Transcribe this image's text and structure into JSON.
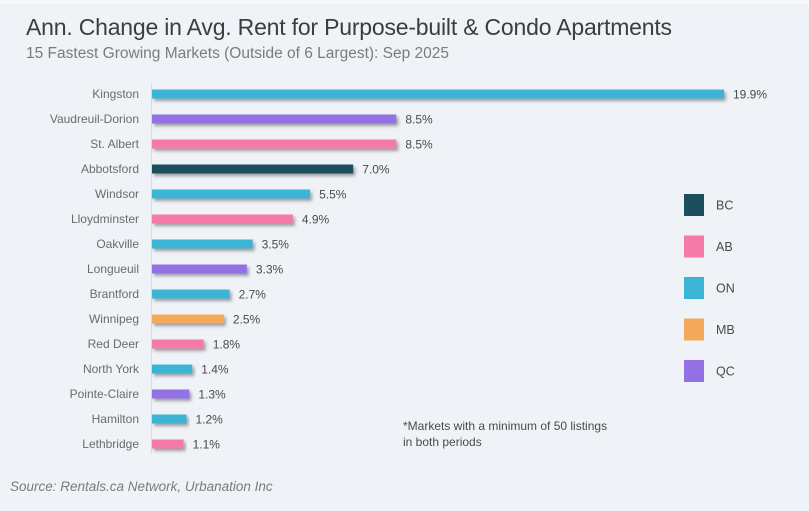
{
  "title": "Ann. Change in Avg. Rent for Purpose-built & Condo Apartments",
  "subtitle": "15 Fastest Growing Markets (Outside of 6 Largest): Sep 2025",
  "note": "*Markets with a minimum of 50 listings in both periods",
  "source": "Source: Rentals.ca Network, Urbanation Inc",
  "chart_data": {
    "type": "bar",
    "orientation": "horizontal",
    "title": "Ann. Change in Avg. Rent for Purpose-built & Condo Apartments",
    "subtitle": "15 Fastest Growing Markets (Outside of 6 Largest): Sep 2025",
    "xlabel": "",
    "ylabel": "",
    "xlim": [
      0,
      20
    ],
    "grid": false,
    "value_format": "percent_1dp",
    "legend_position": "right",
    "legend": [
      {
        "key": "BC",
        "label": "BC",
        "color": "#1b4f5c"
      },
      {
        "key": "AB",
        "label": "AB",
        "color": "#f57aa5"
      },
      {
        "key": "ON",
        "label": "ON",
        "color": "#3bb5d3"
      },
      {
        "key": "MB",
        "label": "MB",
        "color": "#f3a95a"
      },
      {
        "key": "QC",
        "label": "QC",
        "color": "#9370e3"
      }
    ],
    "categories": [
      "Kingston",
      "Vaudreuil-Dorion",
      "St. Albert",
      "Abbotsford",
      "Windsor",
      "Lloydminster",
      "Oakville",
      "Longueuil",
      "Brantford",
      "Winnipeg",
      "Red Deer",
      "North York",
      "Pointe-Claire",
      "Hamilton",
      "Lethbridge"
    ],
    "values": [
      19.9,
      8.5,
      8.5,
      7.0,
      5.5,
      4.9,
      3.5,
      3.3,
      2.7,
      2.5,
      1.8,
      1.4,
      1.3,
      1.2,
      1.1
    ],
    "labels": [
      "19.9%",
      "8.5%",
      "8.5%",
      "7.0%",
      "5.5%",
      "4.9%",
      "3.5%",
      "3.3%",
      "2.7%",
      "2.5%",
      "1.8%",
      "1.4%",
      "1.3%",
      "1.2%",
      "1.1%"
    ],
    "groups": [
      "ON",
      "QC",
      "AB",
      "BC",
      "ON",
      "AB",
      "ON",
      "QC",
      "ON",
      "MB",
      "AB",
      "ON",
      "QC",
      "ON",
      "AB"
    ]
  }
}
